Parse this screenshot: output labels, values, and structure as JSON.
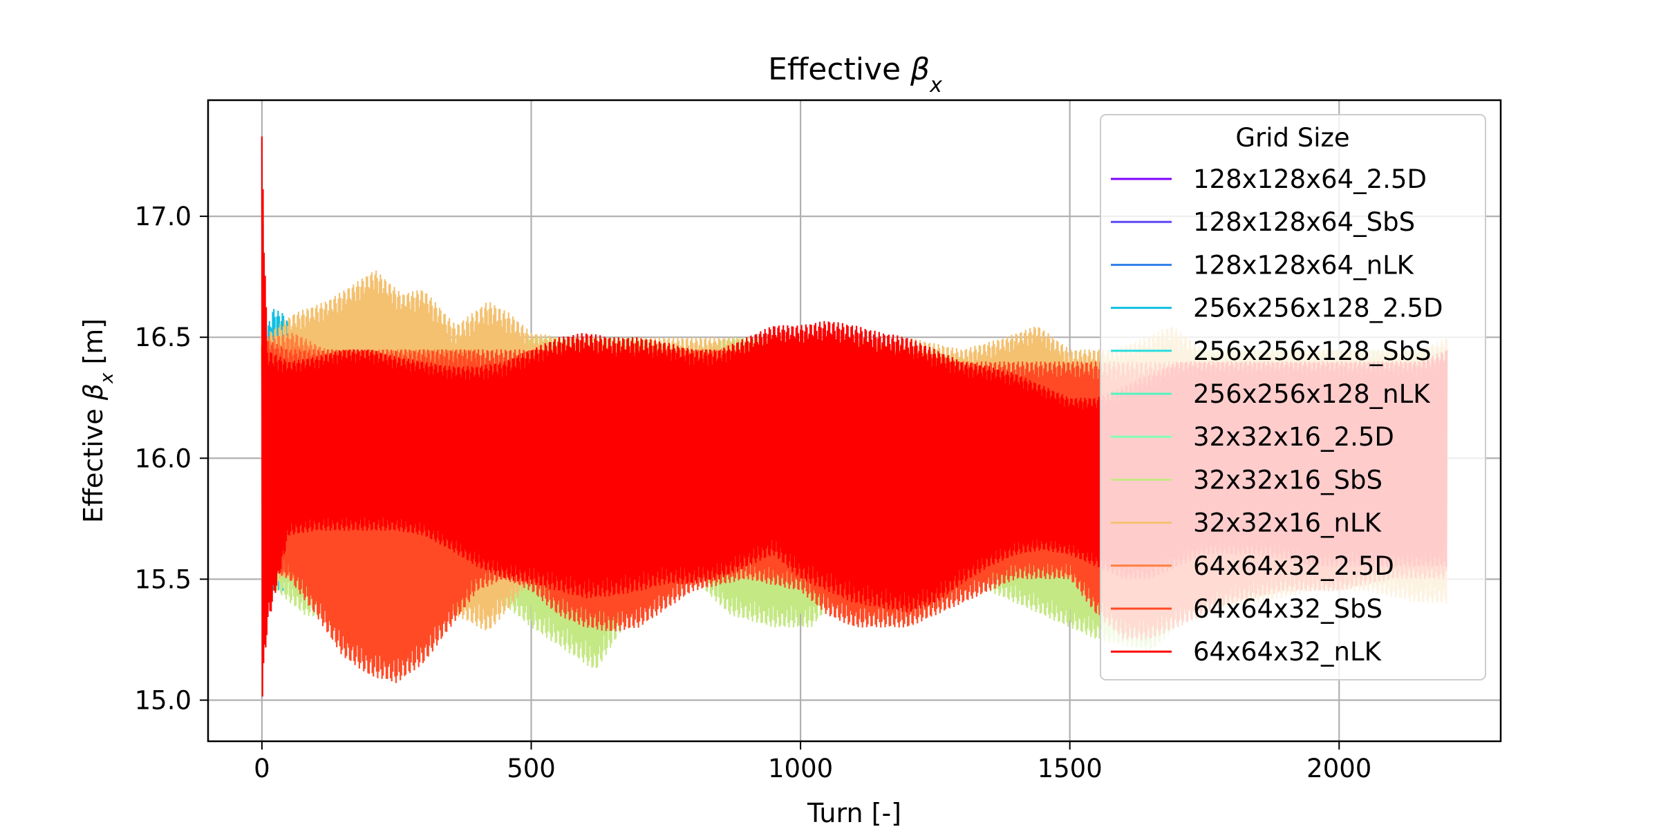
{
  "chart_data": {
    "type": "line",
    "title": "Effective βx",
    "xlabel": "Turn [-]",
    "ylabel": "Effective βx [m]",
    "xlim": [
      -100,
      2300
    ],
    "ylim": [
      14.83,
      17.48
    ],
    "xticks": [
      0,
      500,
      1000,
      1500,
      2000
    ],
    "xtick_labels": [
      "0",
      "500",
      "1000",
      "1500",
      "2000"
    ],
    "yticks": [
      15.0,
      15.5,
      16.0,
      16.5,
      17.0
    ],
    "ytick_labels": [
      "15.0",
      "15.5",
      "16.0",
      "16.5",
      "17.0"
    ],
    "grid": true,
    "legend": {
      "title": "Grid Size",
      "placement": "upper right"
    },
    "series": [
      {
        "name": "128x128x64_2.5D",
        "color": "#7f00ff",
        "x": [
          0,
          2200
        ],
        "envelope_low": [
          15.72,
          15.72
        ],
        "envelope_high": [
          15.72,
          15.72
        ]
      },
      {
        "name": "128x128x64_SbS",
        "color": "#5b48fa",
        "x": [
          0,
          2200
        ],
        "envelope_low": [
          15.72,
          15.72
        ],
        "envelope_high": [
          15.72,
          15.72
        ]
      },
      {
        "name": "128x128x64_nLK",
        "color": "#2f7fe8",
        "x": [
          0,
          2200
        ],
        "envelope_low": [
          15.72,
          15.72
        ],
        "envelope_high": [
          15.72,
          15.72
        ]
      },
      {
        "name": "256x256x128_2.5D",
        "color": "#10bfe2",
        "x": [
          0,
          5,
          20,
          40,
          60,
          75
        ],
        "envelope_low": [
          15.7,
          15.4,
          15.45,
          15.45,
          15.55,
          15.6
        ],
        "envelope_high": [
          17.36,
          16.5,
          16.62,
          16.6,
          16.52,
          16.5
        ]
      },
      {
        "name": "256x256x128_SbS",
        "color": "#2adddd",
        "x": [
          0,
          5,
          20
        ],
        "envelope_low": [
          15.7,
          15.5,
          15.6
        ],
        "envelope_high": [
          17.35,
          16.45,
          16.5
        ]
      },
      {
        "name": "256x256x128_nLK",
        "color": "#50f5c0",
        "x": [
          0,
          2200
        ],
        "envelope_low": [
          15.72,
          15.72
        ],
        "envelope_high": [
          15.72,
          15.72
        ]
      },
      {
        "name": "32x32x16_2.5D",
        "color": "#80ffb4",
        "x": [
          0,
          2200
        ],
        "envelope_low": [
          15.72,
          15.72
        ],
        "envelope_high": [
          15.72,
          15.72
        ]
      },
      {
        "name": "32x32x16_SbS",
        "color": "#c4e884",
        "x": [
          0,
          80,
          200,
          330,
          420,
          500,
          620,
          700,
          800,
          870,
          950,
          1020,
          1100,
          1200,
          1350,
          1450,
          1550,
          1650,
          1750,
          1850,
          1950,
          2050,
          2200
        ],
        "envelope_low": [
          15.5,
          15.35,
          15.3,
          15.5,
          15.45,
          15.3,
          15.12,
          15.4,
          15.5,
          15.35,
          15.3,
          15.3,
          15.5,
          15.5,
          15.45,
          15.35,
          15.25,
          15.2,
          15.4,
          15.5,
          15.45,
          15.5,
          15.55
        ],
        "envelope_high": [
          16.5,
          16.45,
          16.45,
          16.45,
          16.45,
          16.5,
          16.5,
          16.5,
          16.45,
          16.5,
          16.5,
          16.5,
          16.5,
          16.45,
          16.4,
          16.4,
          16.4,
          16.45,
          16.45,
          16.45,
          16.45,
          16.45,
          16.45
        ]
      },
      {
        "name": "32x32x16_nLK",
        "color": "#f4c170",
        "x": [
          0,
          60,
          120,
          170,
          210,
          260,
          300,
          360,
          420,
          460,
          500,
          560,
          640,
          720,
          800,
          900,
          1000,
          1100,
          1200,
          1300,
          1380,
          1440,
          1500,
          1580,
          1640,
          1690,
          1750,
          1850,
          1950,
          2050,
          2150,
          2200
        ],
        "envelope_low": [
          15.5,
          15.5,
          15.55,
          15.55,
          15.55,
          15.55,
          15.5,
          15.35,
          15.28,
          15.38,
          15.5,
          15.55,
          15.55,
          15.55,
          15.55,
          15.5,
          15.5,
          15.5,
          15.45,
          15.5,
          15.55,
          15.55,
          15.5,
          15.4,
          15.35,
          15.35,
          15.38,
          15.4,
          15.45,
          15.45,
          15.4,
          15.4
        ],
        "envelope_high": [
          16.5,
          16.6,
          16.65,
          16.72,
          16.78,
          16.68,
          16.7,
          16.55,
          16.65,
          16.6,
          16.52,
          16.5,
          16.5,
          16.5,
          16.5,
          16.5,
          16.5,
          16.5,
          16.5,
          16.45,
          16.5,
          16.55,
          16.45,
          16.45,
          16.5,
          16.55,
          16.45,
          16.45,
          16.45,
          16.45,
          16.45,
          16.5
        ]
      },
      {
        "name": "64x64x32_2.5D",
        "color": "#ff7f3e",
        "x": [
          0,
          60,
          120,
          200,
          300,
          360,
          400
        ],
        "envelope_low": [
          15.55,
          15.5,
          15.5,
          15.45,
          15.45,
          15.5,
          15.55
        ],
        "envelope_high": [
          16.5,
          16.52,
          16.45,
          16.45,
          16.45,
          16.45,
          16.45
        ]
      },
      {
        "name": "64x64x32_SbS",
        "color": "#ff4a25",
        "x": [
          0,
          50,
          100,
          150,
          200,
          250,
          300,
          350,
          400,
          450,
          500,
          550,
          600,
          650,
          700,
          800,
          900,
          1000,
          1050,
          1100,
          1200,
          1300,
          1400,
          1500,
          1550,
          1600,
          1650,
          1700,
          1800,
          1900,
          2000,
          2100,
          2200
        ],
        "envelope_low": [
          15.55,
          15.5,
          15.35,
          15.18,
          15.1,
          15.07,
          15.15,
          15.3,
          15.45,
          15.5,
          15.45,
          15.35,
          15.3,
          15.28,
          15.3,
          15.45,
          15.5,
          15.45,
          15.35,
          15.3,
          15.3,
          15.4,
          15.5,
          15.5,
          15.35,
          15.25,
          15.25,
          15.3,
          15.4,
          15.45,
          15.45,
          15.5,
          15.5
        ],
        "envelope_high": [
          16.5,
          16.45,
          16.45,
          16.45,
          16.45,
          16.45,
          16.45,
          16.45,
          16.45,
          16.45,
          16.45,
          16.45,
          16.45,
          16.45,
          16.45,
          16.45,
          16.45,
          16.45,
          16.45,
          16.45,
          16.45,
          16.4,
          16.4,
          16.4,
          16.4,
          16.4,
          16.4,
          16.4,
          16.4,
          16.4,
          16.4,
          16.4,
          16.4
        ]
      },
      {
        "name": "64x64x32_nLK",
        "color": "#ff0000",
        "x": [
          0,
          10,
          50,
          100,
          150,
          200,
          250,
          300,
          350,
          400,
          450,
          500,
          550,
          600,
          650,
          700,
          750,
          800,
          850,
          900,
          950,
          1000,
          1050,
          1100,
          1150,
          1200,
          1250,
          1300,
          1350,
          1400,
          1450,
          1500,
          1550,
          1600,
          1650,
          1700,
          1750,
          1800,
          1850,
          1900,
          1950,
          2000,
          2050,
          2100,
          2150,
          2200
        ],
        "envelope_low": [
          14.97,
          15.3,
          15.68,
          15.7,
          15.7,
          15.7,
          15.7,
          15.68,
          15.62,
          15.55,
          15.5,
          15.48,
          15.45,
          15.42,
          15.43,
          15.45,
          15.48,
          15.48,
          15.5,
          15.55,
          15.6,
          15.5,
          15.45,
          15.4,
          15.38,
          15.36,
          15.4,
          15.48,
          15.55,
          15.6,
          15.62,
          15.6,
          15.55,
          15.5,
          15.5,
          15.55,
          15.6,
          15.6,
          15.6,
          15.58,
          15.55,
          15.55,
          15.55,
          15.55,
          15.55,
          15.55
        ],
        "envelope_high": [
          17.33,
          16.45,
          16.4,
          16.42,
          16.45,
          16.45,
          16.42,
          16.4,
          16.38,
          16.38,
          16.4,
          16.45,
          16.5,
          16.52,
          16.5,
          16.5,
          16.48,
          16.45,
          16.45,
          16.5,
          16.55,
          16.55,
          16.57,
          16.55,
          16.52,
          16.5,
          16.45,
          16.4,
          16.38,
          16.35,
          16.3,
          16.25,
          16.25,
          16.3,
          16.35,
          16.4,
          16.4,
          16.4,
          16.4,
          16.4,
          16.4,
          16.4,
          16.4,
          16.4,
          16.4,
          16.45
        ]
      }
    ]
  }
}
